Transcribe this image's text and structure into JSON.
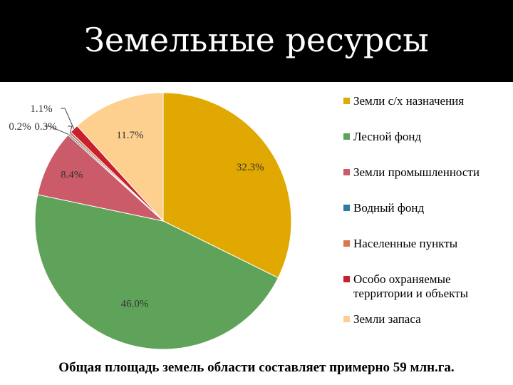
{
  "header": {
    "title": "Земельные ресурсы"
  },
  "chart_data": {
    "type": "pie",
    "categories": [
      "Земли с/х назначения",
      "Лесной фонд",
      "Земли промышленности",
      "Водный фонд",
      "Населенные пункты",
      "Особо охраняемые территории и объекты",
      "Земли запаса"
    ],
    "values": [
      32.3,
      46.0,
      8.4,
      0.2,
      0.3,
      1.1,
      11.7
    ],
    "value_labels": [
      "32.3%",
      "46.0%",
      "8.4%",
      "0.2%",
      "0.3%",
      "1.1%",
      "11.7%"
    ],
    "colors": [
      "#E0A800",
      "#5FA35A",
      "#CC5B6A",
      "#2E7BA0",
      "#D9784A",
      "#C8202C",
      "#FDD090"
    ],
    "legend_position": "right",
    "start_angle_deg": 0,
    "direction": "clockwise"
  },
  "footer": {
    "note": "Общая площадь земель области составляет примерно 59 млн.га."
  }
}
